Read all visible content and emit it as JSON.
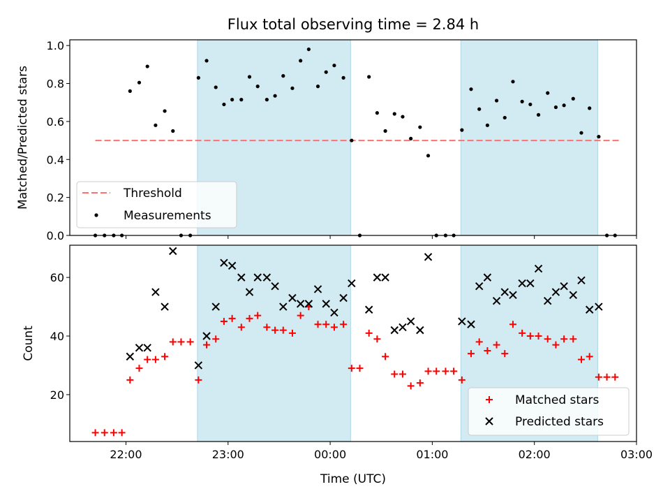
{
  "chart_data": {
    "type": "scatter",
    "title": "Flux total observing time = 2.84 h",
    "xlabel": "Time (UTC)",
    "x_ticks": [
      "22:00",
      "23:00",
      "00:00",
      "01:00",
      "02:00",
      "03:00"
    ],
    "x_tick_hours": [
      0,
      1,
      2,
      3,
      4,
      5
    ],
    "x_origin": "22:00",
    "xlim_hours": [
      -0.55,
      5.0
    ],
    "shaded_spans_hours": [
      [
        0.7,
        2.2
      ],
      [
        3.28,
        4.62
      ]
    ],
    "colors": {
      "shade": "#add8e6",
      "threshold": "#ff7070",
      "measurements": "#000000",
      "matched": "#ff0000",
      "predicted": "#000000"
    },
    "panels": [
      {
        "ylabel": "Matched/Predicted stars",
        "ylim": [
          0,
          1.03
        ],
        "yticks": [
          "0.0",
          "0.2",
          "0.4",
          "0.6",
          "0.8",
          "1.0"
        ],
        "ytick_values": [
          0,
          0.2,
          0.4,
          0.6,
          0.8,
          1.0
        ],
        "threshold": {
          "name": "Threshold",
          "value": 0.5,
          "x_range_hours": [
            -0.3,
            4.85
          ]
        },
        "series": [
          {
            "name": "Measurements",
            "points": [
              [
                -0.3,
                0
              ],
              [
                -0.21,
                0
              ],
              [
                -0.12,
                0
              ],
              [
                -0.04,
                0
              ],
              [
                0.04,
                0.76
              ],
              [
                0.13,
                0.805
              ],
              [
                0.21,
                0.89
              ],
              [
                0.29,
                0.58
              ],
              [
                0.38,
                0.655
              ],
              [
                0.46,
                0.55
              ],
              [
                0.54,
                0
              ],
              [
                0.63,
                0
              ],
              [
                0.71,
                0.83
              ],
              [
                0.79,
                0.92
              ],
              [
                0.88,
                0.78
              ],
              [
                0.96,
                0.69
              ],
              [
                1.04,
                0.715
              ],
              [
                1.13,
                0.715
              ],
              [
                1.21,
                0.835
              ],
              [
                1.29,
                0.785
              ],
              [
                1.38,
                0.715
              ],
              [
                1.46,
                0.735
              ],
              [
                1.54,
                0.84
              ],
              [
                1.63,
                0.775
              ],
              [
                1.71,
                0.92
              ],
              [
                1.79,
                0.98
              ],
              [
                1.88,
                0.785
              ],
              [
                1.96,
                0.86
              ],
              [
                2.04,
                0.895
              ],
              [
                2.13,
                0.83
              ],
              [
                2.21,
                0.5
              ],
              [
                2.29,
                0
              ],
              [
                2.38,
                0.835
              ],
              [
                2.46,
                0.645
              ],
              [
                2.54,
                0.55
              ],
              [
                2.63,
                0.64
              ],
              [
                2.71,
                0.625
              ],
              [
                2.79,
                0.51
              ],
              [
                2.88,
                0.57
              ],
              [
                2.96,
                0.42
              ],
              [
                3.04,
                0
              ],
              [
                3.13,
                0
              ],
              [
                3.21,
                0
              ],
              [
                3.29,
                0.555
              ],
              [
                3.38,
                0.77
              ],
              [
                3.46,
                0.665
              ],
              [
                3.54,
                0.58
              ],
              [
                3.63,
                0.71
              ],
              [
                3.71,
                0.62
              ],
              [
                3.79,
                0.81
              ],
              [
                3.88,
                0.705
              ],
              [
                3.96,
                0.69
              ],
              [
                4.04,
                0.635
              ],
              [
                4.13,
                0.75
              ],
              [
                4.21,
                0.675
              ],
              [
                4.29,
                0.685
              ],
              [
                4.38,
                0.72
              ],
              [
                4.46,
                0.54
              ],
              [
                4.54,
                0.67
              ],
              [
                4.63,
                0.52
              ],
              [
                4.71,
                0
              ],
              [
                4.79,
                0
              ]
            ]
          }
        ]
      },
      {
        "ylabel": "Count",
        "ylim": [
          4,
          71
        ],
        "yticks": [
          "20",
          "40",
          "60"
        ],
        "ytick_values": [
          20,
          40,
          60
        ],
        "series": [
          {
            "name": "Matched stars",
            "marker": "plus",
            "points": [
              [
                -0.3,
                7
              ],
              [
                -0.21,
                7
              ],
              [
                -0.12,
                7
              ],
              [
                -0.04,
                7
              ],
              [
                0.04,
                25
              ],
              [
                0.13,
                29
              ],
              [
                0.21,
                32
              ],
              [
                0.29,
                32
              ],
              [
                0.38,
                33
              ],
              [
                0.46,
                38
              ],
              [
                0.54,
                38
              ],
              [
                0.63,
                38
              ],
              [
                0.71,
                25
              ],
              [
                0.79,
                37
              ],
              [
                0.88,
                39
              ],
              [
                0.96,
                45
              ],
              [
                1.04,
                46
              ],
              [
                1.13,
                43
              ],
              [
                1.21,
                46
              ],
              [
                1.29,
                47
              ],
              [
                1.38,
                43
              ],
              [
                1.46,
                42
              ],
              [
                1.54,
                42
              ],
              [
                1.63,
                41
              ],
              [
                1.71,
                47
              ],
              [
                1.79,
                50
              ],
              [
                1.88,
                44
              ],
              [
                1.96,
                44
              ],
              [
                2.04,
                43
              ],
              [
                2.13,
                44
              ],
              [
                2.21,
                29
              ],
              [
                2.29,
                29
              ],
              [
                2.38,
                41
              ],
              [
                2.46,
                39
              ],
              [
                2.54,
                33
              ],
              [
                2.63,
                27
              ],
              [
                2.71,
                27
              ],
              [
                2.79,
                23
              ],
              [
                2.88,
                24
              ],
              [
                2.96,
                28
              ],
              [
                3.04,
                28
              ],
              [
                3.13,
                28
              ],
              [
                3.21,
                28
              ],
              [
                3.29,
                25
              ],
              [
                3.38,
                34
              ],
              [
                3.46,
                38
              ],
              [
                3.54,
                35
              ],
              [
                3.63,
                37
              ],
              [
                3.71,
                34
              ],
              [
                3.79,
                44
              ],
              [
                3.88,
                41
              ],
              [
                3.96,
                40
              ],
              [
                4.04,
                40
              ],
              [
                4.13,
                39
              ],
              [
                4.21,
                37
              ],
              [
                4.29,
                39
              ],
              [
                4.38,
                39
              ],
              [
                4.46,
                32
              ],
              [
                4.54,
                33
              ],
              [
                4.63,
                26
              ],
              [
                4.71,
                26
              ],
              [
                4.79,
                26
              ]
            ]
          },
          {
            "name": "Predicted stars",
            "marker": "x",
            "points": [
              [
                0.04,
                33
              ],
              [
                0.13,
                36
              ],
              [
                0.21,
                36
              ],
              [
                0.29,
                55
              ],
              [
                0.38,
                50
              ],
              [
                0.46,
                69
              ],
              [
                0.71,
                30
              ],
              [
                0.79,
                40
              ],
              [
                0.88,
                50
              ],
              [
                0.96,
                65
              ],
              [
                1.04,
                64
              ],
              [
                1.13,
                60
              ],
              [
                1.21,
                55
              ],
              [
                1.29,
                60
              ],
              [
                1.38,
                60
              ],
              [
                1.46,
                57
              ],
              [
                1.54,
                50
              ],
              [
                1.63,
                53
              ],
              [
                1.71,
                51
              ],
              [
                1.79,
                51
              ],
              [
                1.88,
                56
              ],
              [
                1.96,
                51
              ],
              [
                2.04,
                48
              ],
              [
                2.13,
                53
              ],
              [
                2.21,
                58
              ],
              [
                2.38,
                49
              ],
              [
                2.46,
                60
              ],
              [
                2.54,
                60
              ],
              [
                2.63,
                42
              ],
              [
                2.71,
                43
              ],
              [
                2.79,
                45
              ],
              [
                2.88,
                42
              ],
              [
                2.96,
                67
              ],
              [
                3.29,
                45
              ],
              [
                3.38,
                44
              ],
              [
                3.46,
                57
              ],
              [
                3.54,
                60
              ],
              [
                3.63,
                52
              ],
              [
                3.71,
                55
              ],
              [
                3.79,
                54
              ],
              [
                3.88,
                58
              ],
              [
                3.96,
                58
              ],
              [
                4.04,
                63
              ],
              [
                4.13,
                52
              ],
              [
                4.21,
                55
              ],
              [
                4.29,
                57
              ],
              [
                4.38,
                54
              ],
              [
                4.46,
                59
              ],
              [
                4.54,
                49
              ],
              [
                4.63,
                50
              ]
            ]
          }
        ]
      }
    ]
  }
}
